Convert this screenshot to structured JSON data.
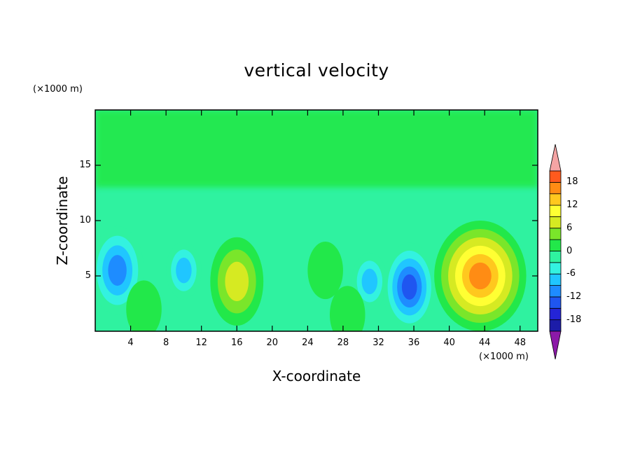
{
  "chart_data": {
    "type": "heatmap",
    "title": "vertical velocity",
    "xlabel": "X-coordinate",
    "ylabel": "Z-coordinate",
    "x_unit_label": "(×1000 m)",
    "y_unit_label": "(×1000 m)",
    "xlim": [
      0,
      50
    ],
    "ylim": [
      0,
      20
    ],
    "x_ticks": [
      4,
      8,
      12,
      16,
      20,
      24,
      28,
      32,
      36,
      40,
      44,
      48
    ],
    "y_ticks": [
      5,
      10,
      15
    ],
    "colorbar": {
      "levels": [
        -21,
        -18,
        -15,
        -12,
        -9,
        -6,
        -3,
        0,
        3,
        6,
        9,
        12,
        15,
        18,
        21
      ],
      "tick_labels": [
        18,
        12,
        6,
        0,
        -6,
        -12,
        -18
      ],
      "colors": [
        "#5e0a9e",
        "#1c1ca8",
        "#2424d6",
        "#1f56f0",
        "#1e8cff",
        "#20c6ff",
        "#33f2e0",
        "#2ff2a0",
        "#22e84a",
        "#7ae62a",
        "#d6ea22",
        "#ffff33",
        "#ffc81e",
        "#ff8c14",
        "#ff5a1e",
        "#ec2c2c",
        "#f2aaaa"
      ],
      "under_color": "#8c1aa8",
      "over_color": "#f4a4a4"
    },
    "features": [
      {
        "name": "downdraft",
        "x": 2.5,
        "z": 5.5,
        "peak": -14
      },
      {
        "name": "downdraft",
        "x": 10.0,
        "z": 5.5,
        "peak": -10
      },
      {
        "name": "downdraft",
        "x": 31.0,
        "z": 4.5,
        "peak": -9
      },
      {
        "name": "downdraft",
        "x": 35.5,
        "z": 4.0,
        "peak": -16
      },
      {
        "name": "updraft",
        "x": 16.0,
        "z": 4.5,
        "peak": 11
      },
      {
        "name": "updraft",
        "x": 5.5,
        "z": 2.0,
        "peak": 4
      },
      {
        "name": "updraft",
        "x": 26.0,
        "z": 5.5,
        "peak": 4
      },
      {
        "name": "updraft",
        "x": 28.5,
        "z": 1.5,
        "peak": 4
      },
      {
        "name": "updraft",
        "x": 43.5,
        "z": 5.0,
        "peak": 18
      }
    ]
  }
}
